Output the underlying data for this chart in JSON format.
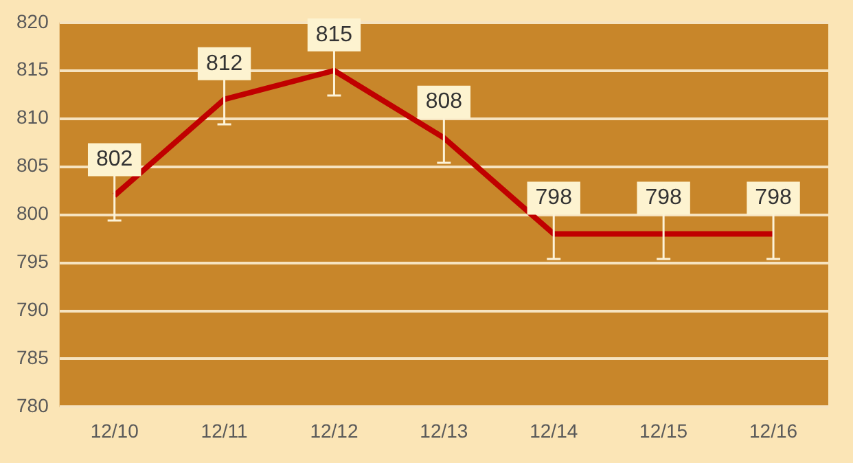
{
  "chart_data": {
    "type": "line",
    "categories": [
      "12/10",
      "12/11",
      "12/12",
      "12/13",
      "12/14",
      "12/15",
      "12/16"
    ],
    "series": [
      {
        "color": "#c00000",
        "values": [
          802,
          812,
          815,
          808,
          798,
          798,
          798
        ],
        "errors": [
          2.6,
          2.6,
          2.6,
          2.6,
          2.6,
          2.6,
          2.6
        ]
      }
    ],
    "ylim": [
      780,
      820
    ],
    "yticks": [
      780,
      785,
      790,
      795,
      800,
      805,
      810,
      815,
      820
    ],
    "grid": "y",
    "legend": false,
    "marker": "none",
    "line_style": "solid",
    "data_labels": true
  }
}
